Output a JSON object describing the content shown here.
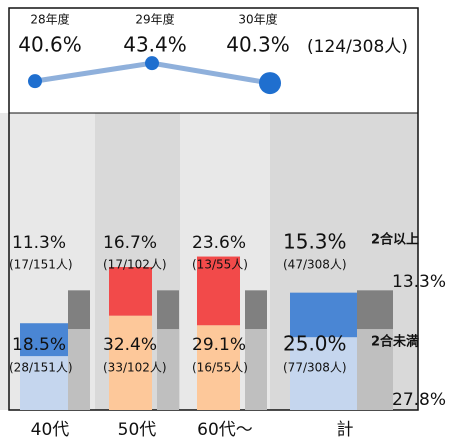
{
  "chart_data": [
    {
      "type": "line",
      "categories": [
        "28年度",
        "29年度",
        "30年度"
      ],
      "values": [
        40.6,
        43.4,
        40.3
      ],
      "value_labels": [
        "40.6%",
        "43.4%",
        "40.3%"
      ],
      "annotation": "(124/308人)",
      "color": "#8fb0db",
      "point_color": "#1f6fcf",
      "ylim": [
        33,
        47
      ]
    },
    {
      "type": "bar",
      "categories": [
        "40代",
        "50代",
        "60代～",
        "計"
      ],
      "series": [
        {
          "name": "2合未満",
          "colors": [
            "#c5d6ee",
            "#fdc89a",
            "#fdc89a",
            "#c5d6ee"
          ],
          "values": [
            18.5,
            32.4,
            29.1,
            25.0
          ],
          "value_labels": [
            "18.5%",
            "32.4%",
            "29.1%",
            "25.0%"
          ],
          "count_labels": [
            "(28/151人)",
            "(33/102人)",
            "(16/55人)",
            "(77/308人)"
          ]
        },
        {
          "name": "2合以上",
          "colors": [
            "#4a86d4",
            "#f24a4a",
            "#f24a4a",
            "#4a86d4"
          ],
          "values": [
            11.3,
            16.7,
            23.6,
            15.3
          ],
          "value_labels": [
            "11.3%",
            "16.7%",
            "23.6%",
            "15.3%"
          ],
          "count_labels": [
            "(17/151人)",
            "(17/102人)",
            "(13/55人)",
            "(47/308人)"
          ]
        }
      ],
      "reference": {
        "values": [
          27.8,
          13.3
        ],
        "value_labels": [
          "27.8%",
          "13.3%"
        ],
        "colors": [
          "#bfbfbf",
          "#808080"
        ]
      },
      "ylim": [
        0,
        102
      ]
    }
  ]
}
